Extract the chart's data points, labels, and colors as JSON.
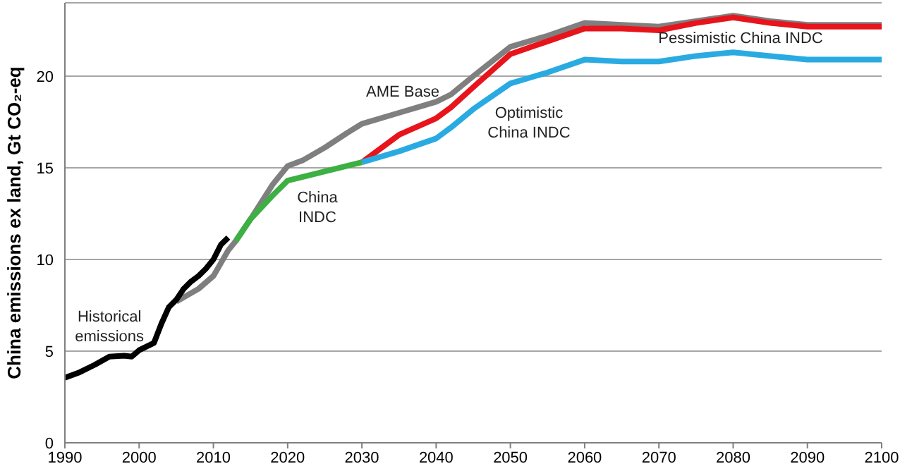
{
  "chart_data": {
    "type": "line",
    "ylabel": "China emissions ex land, Gt CO₂-eq",
    "xlim": [
      1990,
      2100
    ],
    "xticks": [
      1990,
      2000,
      2010,
      2020,
      2030,
      2040,
      2050,
      2060,
      2070,
      2080,
      2090,
      2100
    ],
    "ylim": [
      0,
      24
    ],
    "yticks": [
      0,
      5,
      10,
      15,
      20
    ],
    "grid": "y",
    "marker": "none",
    "line_style": "solid",
    "series": [
      {
        "color": "#7f7f7f",
        "x": [
          2005,
          2008,
          2010,
          2012,
          2013,
          2015,
          2018,
          2020,
          2022,
          2025,
          2028,
          2030,
          2035,
          2040,
          2042,
          2045,
          2050,
          2055,
          2060,
          2065,
          2070,
          2075,
          2080,
          2085,
          2090,
          2100
        ],
        "values": [
          7.7,
          8.4,
          9.1,
          10.5,
          11.0,
          12.2,
          14.1,
          15.1,
          15.4,
          16.1,
          16.9,
          17.4,
          18.0,
          18.6,
          19.0,
          20.0,
          21.6,
          22.2,
          22.9,
          22.8,
          22.7,
          23.0,
          23.3,
          23.0,
          22.8,
          22.8
        ]
      },
      {
        "color": "#e8141c",
        "x": [
          2030,
          2035,
          2040,
          2042,
          2045,
          2050,
          2055,
          2060,
          2065,
          2070,
          2075,
          2080,
          2085,
          2090,
          2100
        ],
        "values": [
          15.3,
          16.8,
          17.7,
          18.3,
          19.4,
          21.2,
          21.9,
          22.6,
          22.6,
          22.5,
          22.9,
          23.2,
          22.9,
          22.7,
          22.7
        ]
      },
      {
        "color": "#29abe2",
        "x": [
          2030,
          2035,
          2040,
          2042,
          2045,
          2050,
          2055,
          2060,
          2065,
          2070,
          2075,
          2080,
          2085,
          2090,
          2100
        ],
        "values": [
          15.3,
          15.9,
          16.6,
          17.2,
          18.2,
          19.6,
          20.2,
          20.9,
          20.8,
          20.8,
          21.1,
          21.3,
          21.1,
          20.9,
          20.9
        ]
      },
      {
        "color": "#3cb043",
        "x": [
          2013,
          2015,
          2018,
          2020,
          2025,
          2030
        ],
        "values": [
          11.0,
          12.2,
          13.5,
          14.3,
          14.8,
          15.3
        ]
      },
      {
        "color": "#000000",
        "x": [
          1990,
          1992,
          1994,
          1996,
          1998,
          1999,
          2000,
          2002,
          2003,
          2004,
          2005,
          2006,
          2007,
          2008,
          2009,
          2010,
          2011,
          2012
        ],
        "values": [
          3.55,
          3.85,
          4.25,
          4.7,
          4.75,
          4.7,
          5.05,
          5.45,
          6.5,
          7.4,
          7.8,
          8.4,
          8.8,
          9.1,
          9.5,
          10.0,
          10.8,
          11.2
        ]
      }
    ],
    "annotations": [
      "Historical emissions",
      "AME Base",
      "China INDC",
      "Optimistic China INDC",
      "Pessimistic China INDC"
    ]
  }
}
